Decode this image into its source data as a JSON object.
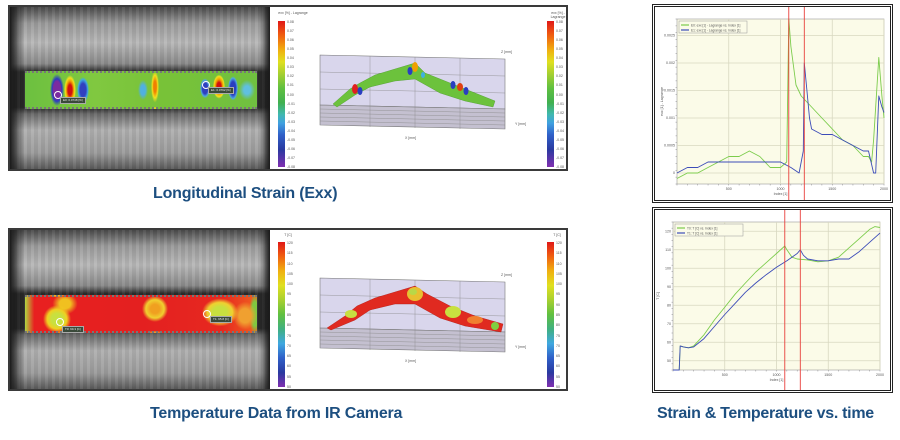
{
  "captions": {
    "strain": "Longitudinal Strain (Exx)",
    "temperature": "Temperature Data from IR Camera",
    "time": "Strain & Temperature vs. time"
  },
  "strain_panel": {
    "image_markers": [
      "E0: 0.0748 [%]",
      "E1: 0.0792 [%]"
    ],
    "colorbar": {
      "title": "exx [%] - Lagrange",
      "ticks": [
        "0.08",
        "0.07",
        "0.06",
        "0.05",
        "0.04",
        "0.03",
        "0.02",
        "0.01",
        "0.00",
        "-0.01",
        "-0.02",
        "-0.03",
        "-0.04",
        "-0.05",
        "-0.06",
        "-0.07",
        "-0.08"
      ]
    },
    "plot3d": {
      "z_label": "Z [mm]",
      "z_ticks": [
        "2",
        "1.25",
        "0.5",
        "-0.25",
        "-1"
      ],
      "x_label": "X [mm]",
      "x_ticks": [
        "-100",
        "-50",
        "0",
        "50",
        "100"
      ],
      "y_label": "Y [mm]",
      "y_ticks": [
        "25",
        "12.5",
        "0",
        "-12.5",
        "-25"
      ]
    }
  },
  "temp_panel": {
    "image_markers": [
      "T0: 99.3 [C]",
      "T1: 95.8 [C]"
    ],
    "colorbar": {
      "title": "T [C]",
      "ticks": [
        "120",
        "115",
        "110",
        "105",
        "100",
        "95",
        "90",
        "85",
        "80",
        "75",
        "70",
        "65",
        "60",
        "55",
        "50"
      ]
    },
    "plot3d": {
      "z_label": "Z [mm]",
      "z_ticks": [
        "2",
        "1.25",
        "0.5",
        "-0.25",
        "-1"
      ],
      "x_label": "X [mm]",
      "x_ticks": [
        "-100",
        "-50",
        "0",
        "50",
        "100"
      ],
      "y_label": "Y [mm]",
      "y_ticks": [
        "25",
        "12.5",
        "0",
        "-12.5",
        "-25"
      ]
    }
  },
  "colors": {
    "caption": "#1d4f80",
    "series_green": "#7ccc4c",
    "series_blue": "#3c4cb8",
    "marker_red": "#e8403c",
    "plot_bg": "#fbfbe8",
    "grid": "#d8d8c0"
  },
  "chart_data": [
    {
      "type": "line",
      "title": "",
      "xlabel": "Index [1]",
      "ylabel": "exx [1] - Lagrange",
      "xlim": [
        0,
        2000
      ],
      "ylim": [
        -0.0002,
        0.0028
      ],
      "x_ticks": [
        "500",
        "1000",
        "1500",
        "2000"
      ],
      "y_ticks": [
        "0",
        "0.0005",
        "0.001",
        "0.0015",
        "0.002",
        "0.0025"
      ],
      "vertical_markers": [
        1080,
        1230
      ],
      "legend_position": "top-left",
      "series": [
        {
          "name": "E0: exx [1] - Lagrange vs. Index [1]",
          "color": "#7ccc4c",
          "x": [
            0,
            100,
            200,
            300,
            400,
            500,
            600,
            700,
            800,
            900,
            1000,
            1060,
            1080,
            1100,
            1150,
            1200,
            1250,
            1300,
            1400,
            1500,
            1600,
            1700,
            1800,
            1850,
            1880,
            1900,
            1950,
            1980,
            2000
          ],
          "values": [
            -0.0001,
            0.0,
            0.0,
            0.0001,
            0.0002,
            0.0003,
            0.0003,
            0.0004,
            0.0003,
            0.0001,
            0.0001,
            0.0002,
            0.0028,
            0.0023,
            0.0016,
            0.0014,
            0.0013,
            0.0012,
            0.001,
            0.0008,
            0.0006,
            0.0005,
            0.0003,
            0.0003,
            0.0002,
            0.0006,
            0.0021,
            0.0014,
            0.001
          ]
        },
        {
          "name": "E1: exx [1] - Lagrange vs. Index [1]",
          "color": "#3c4cb8",
          "x": [
            0,
            100,
            200,
            300,
            400,
            500,
            600,
            700,
            800,
            900,
            1000,
            1100,
            1180,
            1220,
            1230,
            1250,
            1280,
            1300,
            1400,
            1500,
            1600,
            1700,
            1800,
            1850,
            1900,
            1920,
            1950,
            1980,
            2000
          ],
          "values": [
            0.0,
            0.0001,
            0.0001,
            0.0002,
            0.0002,
            0.0002,
            0.0002,
            0.0002,
            0.0002,
            0.0002,
            0.0002,
            0.0001,
            0.0,
            0.0004,
            0.002,
            0.0016,
            0.001,
            0.0008,
            0.0007,
            0.0007,
            0.0006,
            0.0005,
            0.0004,
            0.0004,
            0.0,
            0.0,
            0.0014,
            0.0012,
            0.0011
          ]
        }
      ]
    },
    {
      "type": "line",
      "title": "",
      "xlabel": "Index [1]",
      "ylabel": "T [C]",
      "xlim": [
        0,
        2000
      ],
      "ylim": [
        45,
        125
      ],
      "x_ticks": [
        "500",
        "1000",
        "1500",
        "2000"
      ],
      "y_ticks": [
        "50",
        "60",
        "70",
        "80",
        "90",
        "100",
        "110",
        "120"
      ],
      "vertical_markers": [
        1080,
        1230
      ],
      "legend_position": "top-left",
      "series": [
        {
          "name": "T0: T [C] vs. Index [1]",
          "color": "#7ccc4c",
          "x": [
            0,
            60,
            70,
            100,
            150,
            200,
            300,
            400,
            500,
            600,
            700,
            800,
            900,
            1000,
            1080,
            1100,
            1150,
            1200,
            1300,
            1400,
            1500,
            1600,
            1700,
            1800,
            1900,
            1950,
            2000
          ],
          "values": [
            45,
            45,
            58,
            57.5,
            57,
            58,
            64,
            72,
            79,
            86,
            92,
            98,
            103,
            108,
            112,
            110,
            106,
            105,
            104.5,
            103.5,
            104,
            106,
            111,
            116,
            121,
            122.5,
            122
          ]
        },
        {
          "name": "T1: T [C] vs. Index [1]",
          "color": "#3c4cb8",
          "x": [
            0,
            60,
            70,
            100,
            150,
            200,
            300,
            400,
            500,
            600,
            700,
            800,
            900,
            1000,
            1100,
            1200,
            1230,
            1260,
            1300,
            1400,
            1500,
            1600,
            1700,
            1800,
            1900,
            2000
          ],
          "values": [
            45,
            45,
            58,
            57.5,
            57,
            57.5,
            62,
            68.5,
            75,
            81,
            87,
            92,
            96.5,
            100.5,
            104,
            108,
            110,
            107,
            105,
            104,
            104,
            105,
            105,
            109,
            114,
            119
          ]
        }
      ]
    }
  ]
}
